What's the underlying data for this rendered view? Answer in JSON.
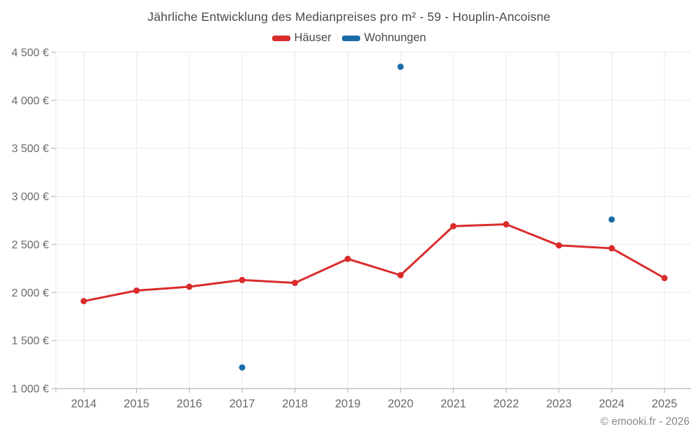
{
  "title": "Jährliche Entwicklung des Medianpreises pro m² - 59 - Houplin-Ancoisne",
  "legend": {
    "items": [
      {
        "id": "haeuser",
        "label": "Häuser",
        "color": "#d92b2b"
      },
      {
        "id": "wohnungen",
        "label": "Wohnungen",
        "color": "#1a6ca8"
      }
    ]
  },
  "footer": {
    "credit": "© emooki.fr - 2026"
  },
  "chart_data": {
    "type": "line",
    "title": "Jährliche Entwicklung des Medianpreises pro m² - 59 - Houplin-Ancoisne",
    "xlabel": "",
    "ylabel": "",
    "categories": [
      "2014",
      "2015",
      "2016",
      "2017",
      "2018",
      "2019",
      "2020",
      "2021",
      "2022",
      "2023",
      "2024",
      "2025"
    ],
    "series": [
      {
        "id": "haeuser",
        "name": "Häuser",
        "type": "line",
        "color": "#d92b2b",
        "values": [
          1910,
          2020,
          2060,
          2130,
          2100,
          2350,
          2180,
          2690,
          2710,
          2490,
          2460,
          2150
        ]
      },
      {
        "id": "wohnungen",
        "name": "Wohnungen",
        "type": "scatter",
        "color": "#1a6ca8",
        "values": [
          null,
          null,
          null,
          1220,
          null,
          null,
          4350,
          null,
          null,
          null,
          2760,
          null
        ]
      }
    ],
    "ylim": [
      1000,
      4500
    ],
    "ytick_interval": 500,
    "ytick_labels": [
      "1 000 €",
      "1 500 €",
      "2 000 €",
      "2 500 €",
      "3 000 €",
      "3 500 €",
      "4 000 €",
      "4 500 €"
    ],
    "currency": "€",
    "grid": true,
    "legend_position": "top",
    "colors": {
      "grid": "#e9e9e9",
      "axis": "#a8a8a8",
      "label": "#65696e"
    }
  }
}
